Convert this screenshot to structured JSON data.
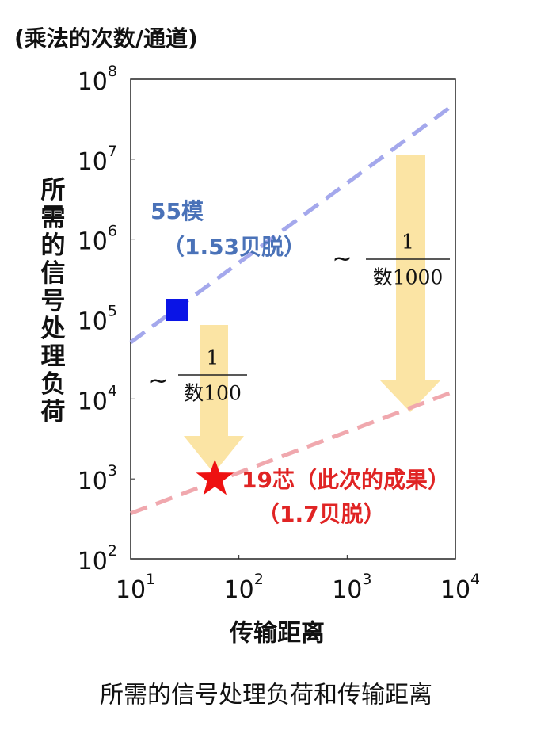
{
  "chart_data": {
    "type": "scatter",
    "title": "(乘法的次数/通道)",
    "xlabel": "传输距离",
    "ylabel": "所需的信号处理负荷",
    "caption": "所需的信号处理负荷和传输距离",
    "log_x": true,
    "log_y": true,
    "xlim": [
      10,
      10000
    ],
    "ylim": [
      100,
      100000000
    ],
    "xticks": [
      {
        "value": 10,
        "label": "10",
        "exponent": "1"
      },
      {
        "value": 100,
        "label": "10",
        "exponent": "2"
      },
      {
        "value": 1000,
        "label": "10",
        "exponent": "3"
      },
      {
        "value": 10000,
        "label": "10",
        "exponent": "4"
      }
    ],
    "yticks": [
      {
        "value": 100,
        "label": "10",
        "exponent": "2"
      },
      {
        "value": 1000,
        "label": "10",
        "exponent": "3"
      },
      {
        "value": 10000,
        "label": "10",
        "exponent": "4"
      },
      {
        "value": 100000,
        "label": "10",
        "exponent": "5"
      },
      {
        "value": 1000000,
        "label": "10",
        "exponent": "6"
      },
      {
        "value": 10000000,
        "label": "10",
        "exponent": "7"
      },
      {
        "value": 100000000,
        "label": "10",
        "exponent": "8"
      }
    ],
    "series": [
      {
        "name": "55模",
        "sublabel": "（1.53贝脱）",
        "color": "#0a14e6",
        "label_color": "#4a72b8",
        "marker": "square",
        "x": [
          27
        ],
        "values": [
          130000
        ]
      },
      {
        "name": "19芯（此次的成果）",
        "sublabel": "（1.7贝脱）",
        "color": "#ee1111",
        "label_color": "#e02424",
        "marker": "star",
        "x": [
          60
        ],
        "values": [
          1000
        ]
      }
    ],
    "trend_lines": [
      {
        "color": "#a4a8ec",
        "x": [
          10,
          10000
        ],
        "values": [
          51000,
          50000000
        ]
      },
      {
        "color": "#f0a8ae",
        "x": [
          10,
          10000
        ],
        "values": [
          370,
          12600
        ]
      }
    ],
    "annotations": [
      {
        "prefix": "~",
        "numerator": "1",
        "denominator": "数100"
      },
      {
        "prefix": "~",
        "numerator": "1",
        "denominator": "数1000"
      }
    ]
  }
}
